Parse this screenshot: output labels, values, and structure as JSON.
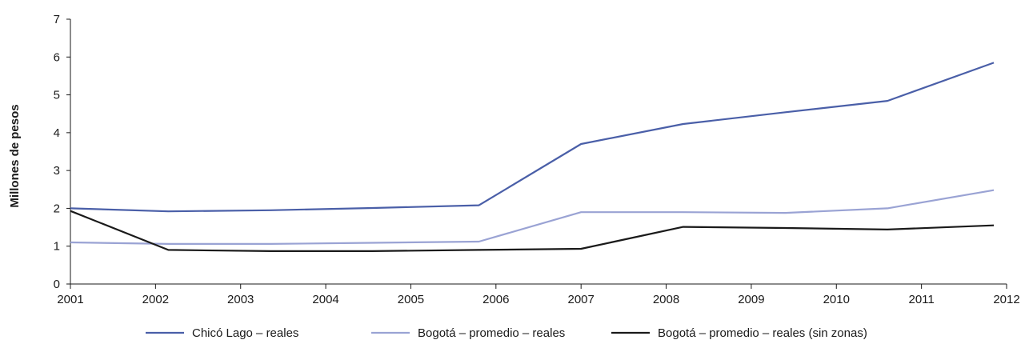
{
  "chart_data": {
    "type": "line",
    "title": "",
    "xlabel": "",
    "ylabel": "Millones de pesos",
    "x": [
      2001,
      2002,
      2003,
      2004,
      2005,
      2006,
      2007,
      2008,
      2009,
      2010,
      2011,
      2012
    ],
    "x_ticks": [
      "2001",
      "2002",
      "2003",
      "2004",
      "2005",
      "2006",
      "2007",
      "2008",
      "2009",
      "2010",
      "2011",
      "2012"
    ],
    "ylim": [
      0,
      7
    ],
    "y_ticks": [
      0,
      1,
      2,
      3,
      4,
      5,
      6,
      7
    ],
    "grid": false,
    "legend_position": "bottom",
    "series": [
      {
        "name": "Chicó Lago – reales",
        "color": "#4a5fa8",
        "points": [
          [
            2001,
            2.0
          ],
          [
            2002.15,
            1.92
          ],
          [
            2003.35,
            1.95
          ],
          [
            2004.55,
            2.01
          ],
          [
            2005.8,
            2.08
          ],
          [
            2007,
            3.7
          ],
          [
            2008.2,
            4.23
          ],
          [
            2009.4,
            4.54
          ],
          [
            2010.6,
            4.84
          ],
          [
            2011.85,
            5.85
          ]
        ]
      },
      {
        "name": "Bogotá – promedio – reales",
        "color": "#9aa3d4",
        "points": [
          [
            2001,
            1.1
          ],
          [
            2002.15,
            1.06
          ],
          [
            2003.35,
            1.06
          ],
          [
            2004.55,
            1.09
          ],
          [
            2005.8,
            1.12
          ],
          [
            2007,
            1.9
          ],
          [
            2008.2,
            1.9
          ],
          [
            2009.4,
            1.88
          ],
          [
            2010.6,
            2.0
          ],
          [
            2011.85,
            2.48
          ]
        ]
      },
      {
        "name": "Bogotá – promedio – reales (sin zonas)",
        "color": "#1a1a1a",
        "points": [
          [
            2001,
            1.93
          ],
          [
            2002.15,
            0.9
          ],
          [
            2003.35,
            0.87
          ],
          [
            2004.55,
            0.87
          ],
          [
            2005.8,
            0.9
          ],
          [
            2007,
            0.93
          ],
          [
            2008.2,
            1.51
          ],
          [
            2009.4,
            1.48
          ],
          [
            2010.6,
            1.44
          ],
          [
            2011.85,
            1.55
          ]
        ]
      }
    ]
  }
}
